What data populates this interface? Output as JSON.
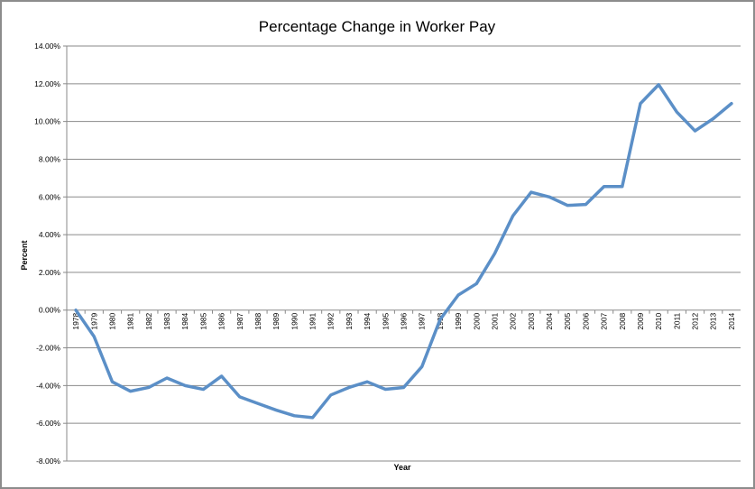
{
  "chart_data": {
    "type": "line",
    "title": "Percentage Change in Worker Pay",
    "xlabel": "Year",
    "ylabel": "Percent",
    "ylim": [
      -8,
      14
    ],
    "y_ticks": [
      "-8.00%",
      "-6.00%",
      "-4.00%",
      "-2.00%",
      "0.00%",
      "2.00%",
      "4.00%",
      "6.00%",
      "8.00%",
      "10.00%",
      "12.00%",
      "14.00%"
    ],
    "grid": true,
    "legend": "none",
    "line_color": "#5b8fc7",
    "categories": [
      "1978",
      "1979",
      "1980",
      "1981",
      "1982",
      "1983",
      "1984",
      "1985",
      "1986",
      "1987",
      "1988",
      "1989",
      "1990",
      "1991",
      "1992",
      "1993",
      "1994",
      "1995",
      "1996",
      "1997",
      "1998",
      "1999",
      "2000",
      "2001",
      "2002",
      "2003",
      "2004",
      "2005",
      "2006",
      "2007",
      "2008",
      "2009",
      "2010",
      "2011",
      "2012",
      "2013",
      "2014"
    ],
    "series": [
      {
        "values": [
          0.0,
          -1.4,
          -3.8,
          -4.3,
          -4.1,
          -3.6,
          -4.0,
          -4.2,
          -3.5,
          -4.6,
          -4.95,
          -5.3,
          -5.6,
          -5.7,
          -4.5,
          -4.1,
          -3.8,
          -4.2,
          -4.1,
          -3.0,
          -0.5,
          0.8,
          1.4,
          3.0,
          5.0,
          6.25,
          6.0,
          5.55,
          5.6,
          6.55,
          6.55,
          10.95,
          11.95,
          10.5,
          9.5,
          10.15,
          10.95
        ]
      }
    ]
  }
}
